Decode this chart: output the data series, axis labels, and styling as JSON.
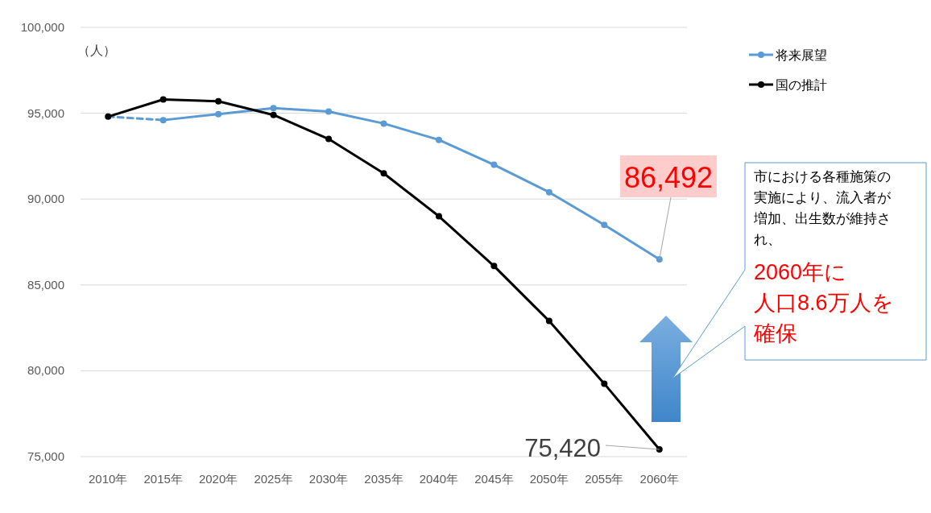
{
  "chart_data": {
    "type": "line",
    "ylabel": "（人）",
    "categories": [
      "2010年",
      "2015年",
      "2020年",
      "2025年",
      "2030年",
      "2035年",
      "2040年",
      "2045年",
      "2050年",
      "2055年",
      "2060年"
    ],
    "series": [
      {
        "name": "将来展望",
        "color": "#5b9bd5",
        "values": [
          null,
          94600,
          94950,
          95300,
          95100,
          94400,
          93450,
          92000,
          90400,
          88500,
          86492
        ],
        "value_labels": [
          null,
          null,
          null,
          null,
          null,
          null,
          null,
          null,
          null,
          null,
          "86,492"
        ]
      },
      {
        "color": "#5b9bd5",
        "line_style": "dashed",
        "marker": "none",
        "values": [
          94800,
          94600,
          null,
          null,
          null,
          null,
          null,
          null,
          null,
          null,
          null
        ]
      },
      {
        "name": "国の推計",
        "color": "#000000",
        "values": [
          94800,
          95800,
          95700,
          94900,
          93500,
          91500,
          89000,
          86100,
          82900,
          79250,
          75420
        ],
        "value_labels": [
          null,
          null,
          null,
          null,
          null,
          null,
          null,
          null,
          null,
          null,
          "75,420"
        ]
      }
    ],
    "ylim": [
      75000,
      100000
    ],
    "yticks": [
      {
        "value": 75000,
        "label": "75,000"
      },
      {
        "value": 80000,
        "label": "80,000"
      },
      {
        "value": 85000,
        "label": "85,000"
      },
      {
        "value": 90000,
        "label": "90,000"
      },
      {
        "value": 95000,
        "label": "95,000"
      },
      {
        "value": 100000,
        "label": "100,000"
      }
    ],
    "grid": "y",
    "legend": "top right",
    "marker": "circle",
    "line_style": "solid",
    "annotations": [
      "市における各種施策の実施により、流入者が増加、出生数が維持され、",
      "2060年に",
      "人口8.6万人を",
      "確保"
    ]
  }
}
